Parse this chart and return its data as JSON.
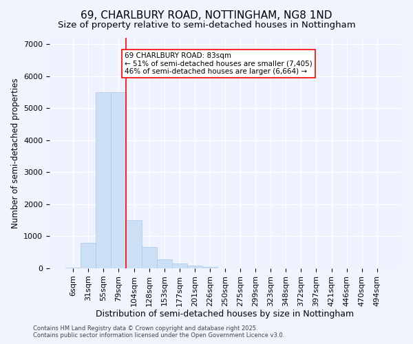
{
  "title": "69, CHARLBURY ROAD, NOTTINGHAM, NG8 1ND",
  "subtitle": "Size of property relative to semi-detached houses in Nottingham",
  "xlabel": "Distribution of semi-detached houses by size in Nottingham",
  "ylabel": "Number of semi-detached properties",
  "footer_line1": "Contains HM Land Registry data © Crown copyright and database right 2025.",
  "footer_line2": "Contains public sector information licensed under the Open Government Licence v3.0.",
  "categories": [
    "6sqm",
    "31sqm",
    "55sqm",
    "79sqm",
    "104sqm",
    "128sqm",
    "153sqm",
    "177sqm",
    "201sqm",
    "226sqm",
    "250sqm",
    "275sqm",
    "299sqm",
    "323sqm",
    "348sqm",
    "372sqm",
    "397sqm",
    "421sqm",
    "446sqm",
    "470sqm",
    "494sqm"
  ],
  "values": [
    30,
    800,
    5500,
    5500,
    1500,
    660,
    280,
    150,
    80,
    50,
    0,
    0,
    0,
    0,
    0,
    0,
    0,
    0,
    0,
    0,
    0
  ],
  "bar_color": "#cce0f5",
  "bar_edgecolor": "#aac8e8",
  "vline_x": 3.5,
  "vline_color": "red",
  "annotation_text": "69 CHARLBURY ROAD: 83sqm\n← 51% of semi-detached houses are smaller (7,405)\n46% of semi-detached houses are larger (6,664) →",
  "annotation_box_color": "white",
  "annotation_box_edgecolor": "red",
  "ylim": [
    0,
    7200
  ],
  "yticks": [
    0,
    1000,
    2000,
    3000,
    4000,
    5000,
    6000,
    7000
  ],
  "bg_color": "#f0f4ff",
  "plot_bg_color": "#eef2ff",
  "grid_color": "white",
  "title_fontsize": 11,
  "subtitle_fontsize": 9.5,
  "xlabel_fontsize": 9,
  "ylabel_fontsize": 8.5,
  "tick_fontsize": 8,
  "annot_fontsize": 7.5
}
